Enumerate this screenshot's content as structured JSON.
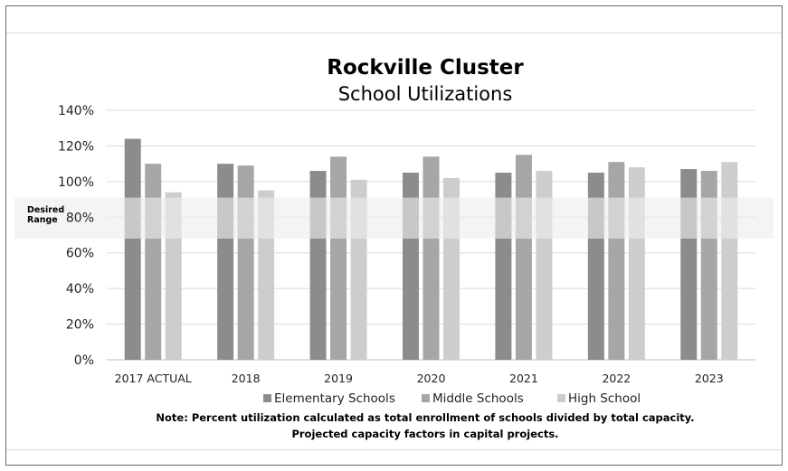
{
  "chart_data": {
    "type": "bar",
    "title": "Rockville Cluster",
    "subtitle": "School Utilizations",
    "categories": [
      "2017 ACTUAL",
      "2018",
      "2019",
      "2020",
      "2021",
      "2022",
      "2023"
    ],
    "series": [
      {
        "name": "Elementary Schools",
        "color": "#8c8c8c",
        "values": [
          124,
          110,
          106,
          105,
          105,
          105,
          107
        ]
      },
      {
        "name": "Middle Schools",
        "color": "#a6a6a6",
        "values": [
          110,
          109,
          114,
          114,
          115,
          111,
          106
        ]
      },
      {
        "name": "High School",
        "color": "#cdcdcd",
        "values": [
          94,
          95,
          101,
          102,
          106,
          108,
          111
        ]
      }
    ],
    "ylim": [
      0,
      140
    ],
    "yticks": [
      0,
      20,
      40,
      60,
      80,
      100,
      120,
      140
    ],
    "ytick_labels": [
      "0%",
      "20%",
      "40%",
      "60%",
      "80%",
      "100%",
      "120%",
      "140%"
    ],
    "grid": true,
    "legend_position": "bottom",
    "desired_range": {
      "label_line1": "Desired",
      "label_line2": "Range",
      "low": 68,
      "high": 91,
      "color": "#eeeeee"
    },
    "note_line1": "Note:  Percent utilization calculated as total enrollment of schools divided by total capacity.",
    "note_line2": "Projected capacity factors in capital projects."
  }
}
